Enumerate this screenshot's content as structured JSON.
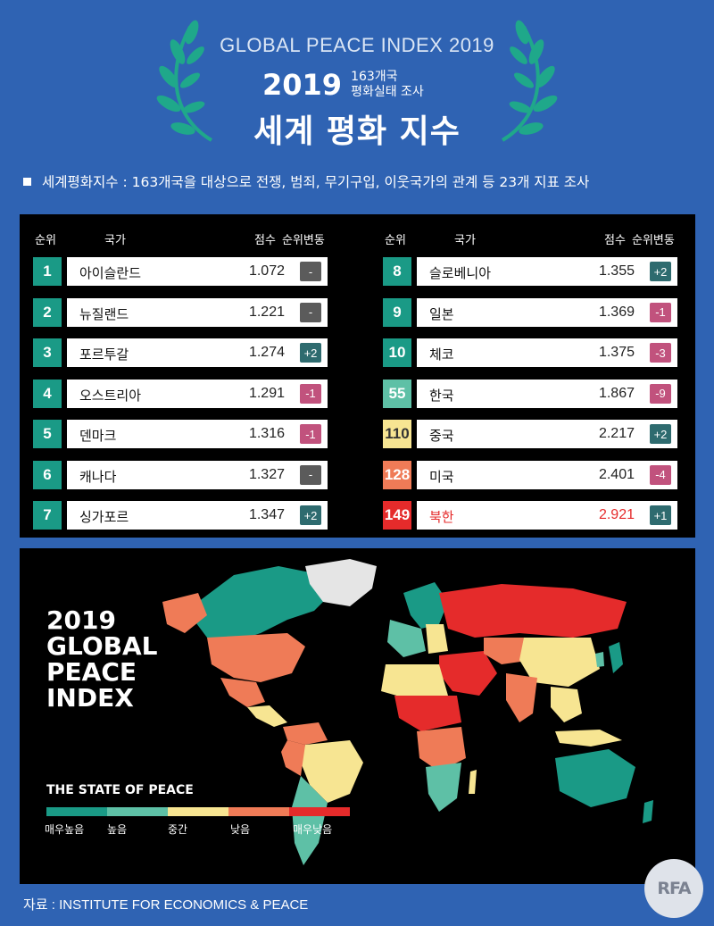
{
  "header": {
    "gpi_title": "GLOBAL PEACE INDEX 2019",
    "year": "2019",
    "sub_line1": "163개국",
    "sub_line2": "평화실태 조사",
    "main_title": "세계 평화 지수"
  },
  "note": "세계평화지수 : 163개국을 대상으로 전쟁, 범죄, 무기구입, 이웃국가의 관계 등 23개 지표 조사",
  "table_headers": {
    "rank": "순위",
    "country": "국가",
    "score": "점수",
    "change": "순위변동"
  },
  "colors": {
    "very_high": "#1a9a86",
    "high": "#5ec0a6",
    "medium": "#f7e592",
    "low": "#ef7b57",
    "very_low": "#e52b2b",
    "change_up": "#2e6b6f",
    "change_down": "#c1527d",
    "change_none": "#5b5b5b"
  },
  "chart_data": {
    "type": "table",
    "columns": [
      "순위",
      "국가",
      "점수",
      "순위변동"
    ],
    "rows": [
      {
        "rank": "1",
        "country": "아이슬란드",
        "score": "1.072",
        "change": "-",
        "dir": "none",
        "level": "very_high"
      },
      {
        "rank": "2",
        "country": "뉴질랜드",
        "score": "1.221",
        "change": "-",
        "dir": "none",
        "level": "very_high"
      },
      {
        "rank": "3",
        "country": "포르투갈",
        "score": "1.274",
        "change": "+2",
        "dir": "up",
        "level": "very_high"
      },
      {
        "rank": "4",
        "country": "오스트리아",
        "score": "1.291",
        "change": "-1",
        "dir": "down",
        "level": "very_high"
      },
      {
        "rank": "5",
        "country": "덴마크",
        "score": "1.316",
        "change": "-1",
        "dir": "down",
        "level": "very_high"
      },
      {
        "rank": "6",
        "country": "캐나다",
        "score": "1.327",
        "change": "-",
        "dir": "none",
        "level": "very_high"
      },
      {
        "rank": "7",
        "country": "싱가포르",
        "score": "1.347",
        "change": "+2",
        "dir": "up",
        "level": "very_high"
      },
      {
        "rank": "8",
        "country": "슬로베니아",
        "score": "1.355",
        "change": "+2",
        "dir": "up",
        "level": "very_high"
      },
      {
        "rank": "9",
        "country": "일본",
        "score": "1.369",
        "change": "-1",
        "dir": "down",
        "level": "very_high"
      },
      {
        "rank": "10",
        "country": "체코",
        "score": "1.375",
        "change": "-3",
        "dir": "down",
        "level": "very_high"
      },
      {
        "rank": "55",
        "country": "한국",
        "score": "1.867",
        "change": "-9",
        "dir": "down",
        "level": "high"
      },
      {
        "rank": "110",
        "country": "중국",
        "score": "2.217",
        "change": "+2",
        "dir": "up",
        "level": "medium"
      },
      {
        "rank": "128",
        "country": "미국",
        "score": "2.401",
        "change": "-4",
        "dir": "down",
        "level": "low"
      },
      {
        "rank": "149",
        "country": "북한",
        "score": "2.921",
        "change": "+1",
        "dir": "up",
        "level": "very_low",
        "highlight": true
      }
    ]
  },
  "map": {
    "title_lines": [
      "2019",
      "GLOBAL",
      "PEACE",
      "INDEX"
    ],
    "state_label": "THE STATE OF PEACE",
    "legend": [
      {
        "label": "매우높음",
        "color": "#1a9a86"
      },
      {
        "label": "높음",
        "color": "#5ec0a6"
      },
      {
        "label": "중간",
        "color": "#f7e592"
      },
      {
        "label": "낮음",
        "color": "#ef7b57"
      },
      {
        "label": "매우낮음",
        "color": "#e52b2b"
      }
    ]
  },
  "source": "자료 : INSTITUTE FOR ECONOMICS & PEACE",
  "logo": "RFA"
}
